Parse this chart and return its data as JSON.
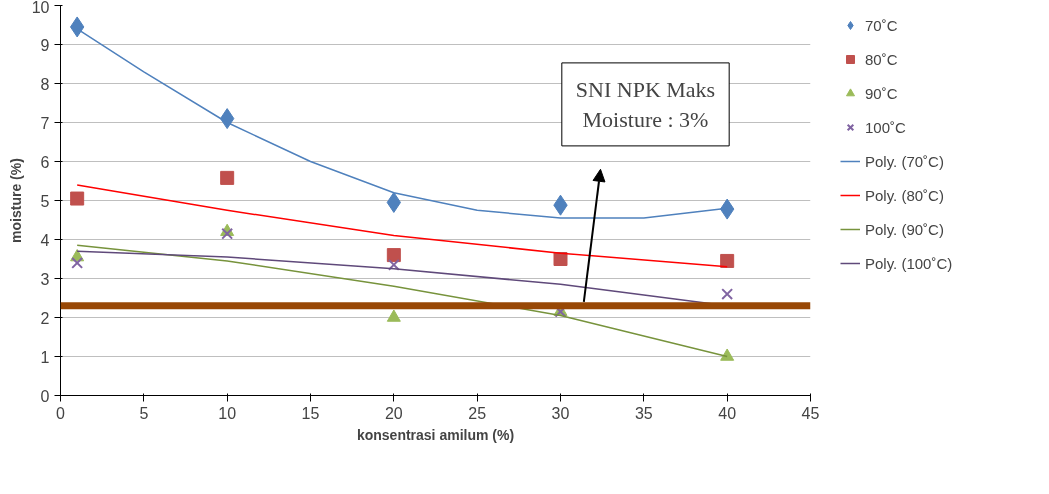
{
  "chart_data": {
    "type": "scatter",
    "xlabel": "konsentrasi amilum (%)",
    "ylabel": "moisture (%)",
    "x": [
      1,
      10,
      20,
      30,
      40
    ],
    "series": [
      {
        "name": "70˚C",
        "marker": "diamond",
        "color": "#4f81bd",
        "values": [
          9.45,
          7.1,
          4.95,
          4.88,
          4.78
        ]
      },
      {
        "name": "80˚C",
        "marker": "square",
        "color": "#c0504d",
        "values": [
          5.05,
          5.58,
          3.6,
          3.5,
          3.45
        ]
      },
      {
        "name": "90˚C",
        "marker": "triangle",
        "color": "#9bbb59",
        "values": [
          3.55,
          4.2,
          2.0,
          2.15,
          1.0
        ]
      },
      {
        "name": "100˚C",
        "marker": "cross",
        "color": "#8064a2",
        "values": [
          3.4,
          4.15,
          3.35,
          2.15,
          2.6
        ]
      },
      {
        "name": "Poly. (70˚C)",
        "type": "line",
        "marker": "none",
        "color": "#4f81bd",
        "x": [
          1,
          5,
          10,
          15,
          20,
          25,
          30,
          35,
          40
        ],
        "values": [
          9.4,
          8.3,
          7.0,
          6.0,
          5.2,
          4.75,
          4.55,
          4.55,
          4.8
        ]
      },
      {
        "name": "Poly. (80˚C)",
        "type": "line",
        "marker": "none",
        "color": "#ff0000",
        "x": [
          1,
          10,
          20,
          30,
          40
        ],
        "values": [
          5.4,
          4.75,
          4.1,
          3.65,
          3.3
        ]
      },
      {
        "name": "Poly. (90˚C)",
        "type": "line",
        "marker": "none",
        "color": "#77933c",
        "x": [
          1,
          10,
          20,
          30,
          40
        ],
        "values": [
          3.85,
          3.45,
          2.8,
          2.05,
          1.0
        ]
      },
      {
        "name": "Poly. (100˚C)",
        "type": "line",
        "marker": "none",
        "color": "#5f497a",
        "x": [
          1,
          10,
          20,
          30,
          40
        ],
        "values": [
          3.7,
          3.55,
          3.25,
          2.85,
          2.3
        ]
      }
    ],
    "ref_lines": [
      {
        "axis": "y",
        "value": 2.3,
        "color": "#984806"
      }
    ],
    "annotations": [
      "SNI NPK Maks\nMoisture : 3%"
    ],
    "xlim": [
      0,
      45
    ],
    "xticks": [
      0,
      5,
      10,
      15,
      20,
      25,
      30,
      35,
      40,
      45
    ],
    "ylim": [
      0,
      10
    ],
    "yticks": [
      0,
      1,
      2,
      3,
      4,
      5,
      6,
      7,
      8,
      9,
      10
    ],
    "grid": "y",
    "legend": "right"
  }
}
